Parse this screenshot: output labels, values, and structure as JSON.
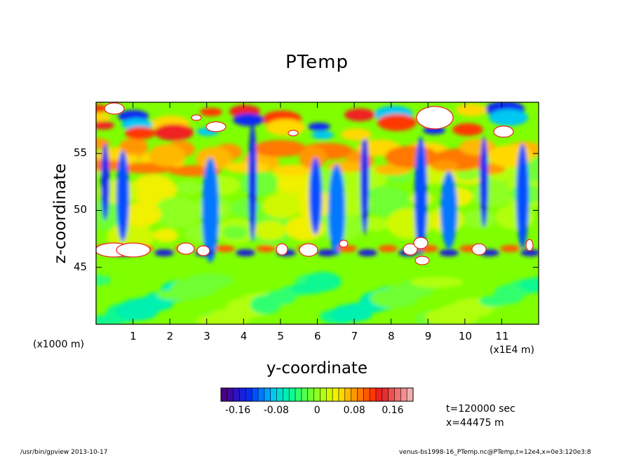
{
  "chart_data": {
    "type": "heatmap",
    "title": "PTemp",
    "xlabel": "y-coordinate",
    "ylabel": "z-coordinate",
    "x_unit_left": "(x1000 m)",
    "x_unit_right": "(x1E4 m)",
    "xlim": [
      0,
      12
    ],
    "ylim": [
      40,
      59.5
    ],
    "x_ticks": [
      "1",
      "2",
      "3",
      "4",
      "5",
      "6",
      "7",
      "8",
      "9",
      "10",
      "11"
    ],
    "y_ticks": [
      "45",
      "50",
      "55"
    ],
    "colorbar": {
      "range": [
        -0.2,
        0.2
      ],
      "ticks": [
        "-0.16",
        "-0.08",
        "0",
        "0.08",
        "0.16"
      ],
      "colors": [
        "#4b0082",
        "#3a0aa0",
        "#2a14c0",
        "#1a1fd8",
        "#0a2bef",
        "#0050ff",
        "#0078ff",
        "#00a0ff",
        "#00c8f0",
        "#00e0d0",
        "#00f0b0",
        "#10f890",
        "#30ff70",
        "#50ff50",
        "#70ff30",
        "#90ff20",
        "#b0ff10",
        "#d0f800",
        "#f0f000",
        "#ffd800",
        "#ffb800",
        "#ff9800",
        "#ff7800",
        "#ff5800",
        "#ff3800",
        "#f02020",
        "#e03030",
        "#f05050",
        "#f07070",
        "#f09090",
        "#f0b0b0"
      ]
    }
  },
  "info": {
    "time": "t=120000 sec",
    "position": "x=44475 m"
  },
  "footer": {
    "left": "/usr/bin/gpview   2013-10-17",
    "right": "venus-bs1998-16_PTemp.nc@PTemp,t=12e4,x=0e3:120e3:8"
  }
}
